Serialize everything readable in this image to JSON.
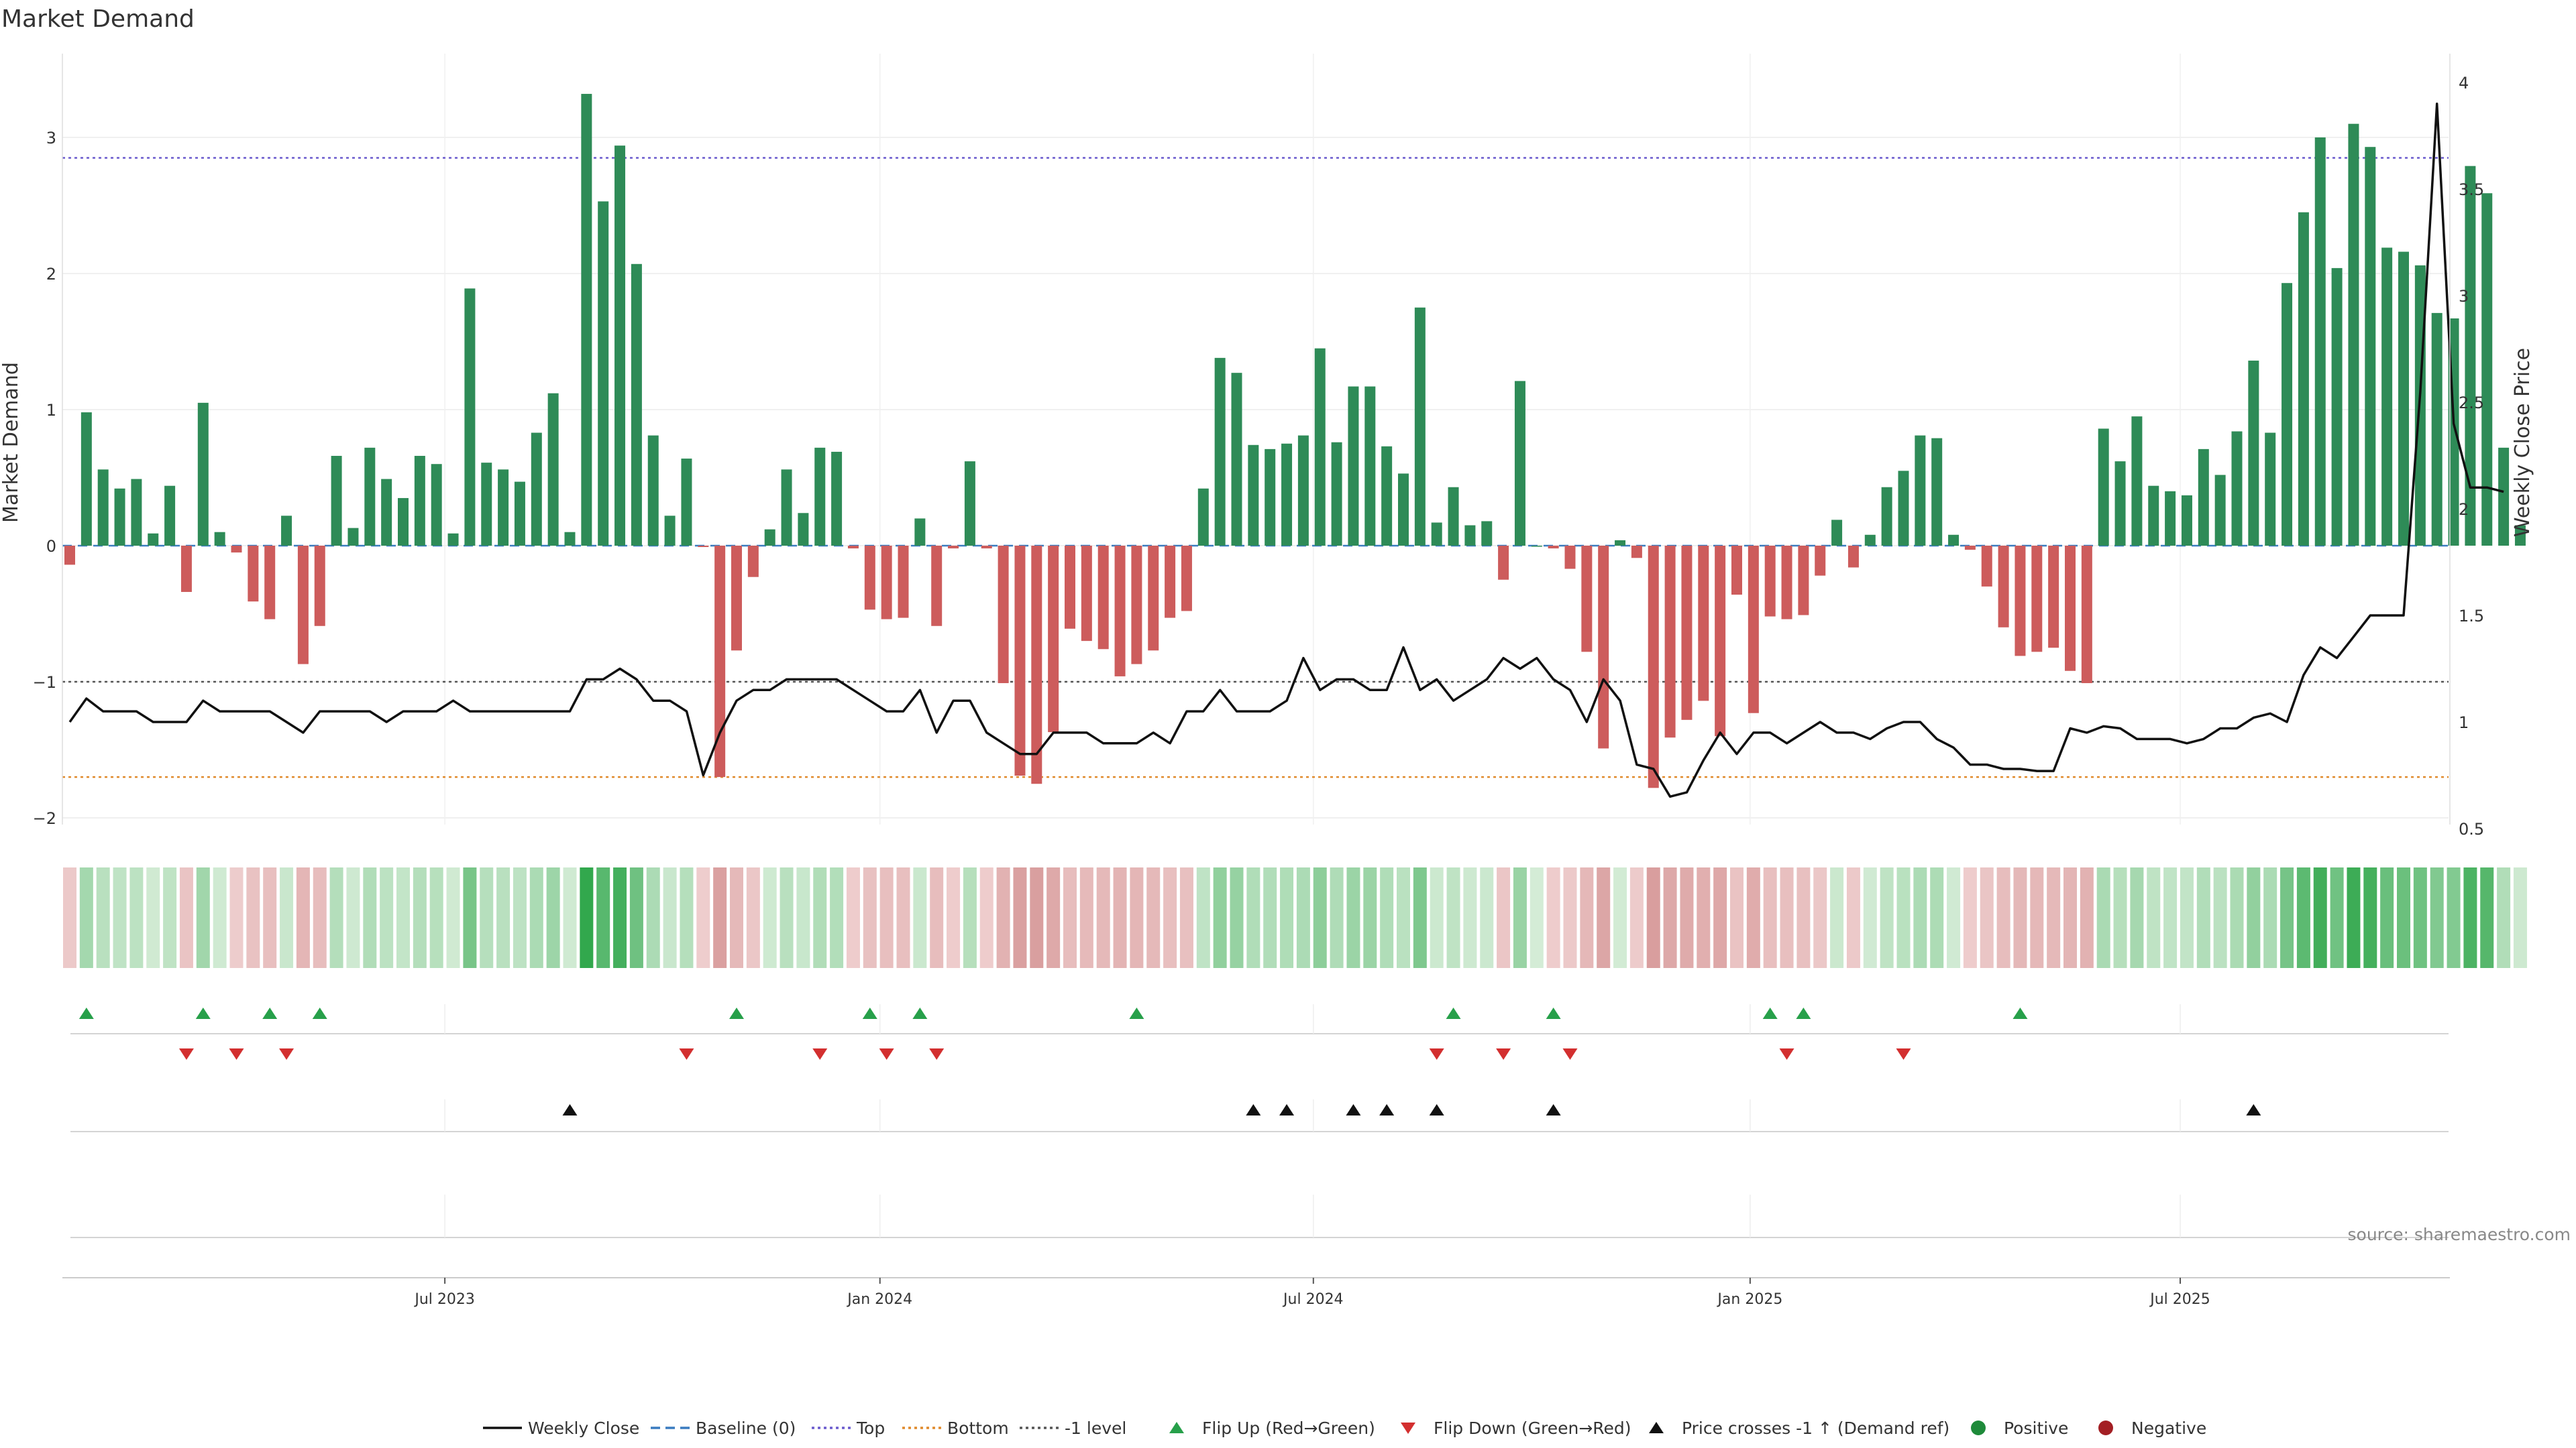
{
  "chart_data": {
    "type": "bar",
    "title": "Market Demand",
    "ylabel": "Market Demand",
    "y2label": "Weekly Close Price",
    "ylim": [
      -2.1,
      3.5
    ],
    "y2lim": [
      0.45,
      4.1
    ],
    "yticks": [
      -2,
      -1,
      0,
      1,
      2,
      3
    ],
    "yticklabels": [
      "−2",
      "−1",
      "0",
      "1",
      "2",
      "3"
    ],
    "y2ticks": [
      0.5,
      1,
      1.5,
      2,
      2.5,
      3,
      3.5,
      4
    ],
    "y2ticklabels": [
      "0.5",
      "1",
      "1.5",
      "2",
      "2.5",
      "3",
      "3.5",
      "4"
    ],
    "xticklabels": [
      "Jul 2023",
      "Jan 2024",
      "Jul 2024",
      "Jan 2025",
      "Jul 2025"
    ],
    "xtick_index": [
      22.5,
      48.6,
      74.6,
      100.8,
      126.6
    ],
    "reference_lines": {
      "top": 2.85,
      "bottom": -1.7,
      "minus_one": -1.0,
      "baseline": 0
    },
    "demand": [
      -0.14,
      0.98,
      0.56,
      0.42,
      0.49,
      0.09,
      0.44,
      -0.34,
      1.05,
      0.1,
      -0.05,
      -0.41,
      -0.54,
      0.22,
      -0.87,
      -0.59,
      0.66,
      0.13,
      0.72,
      0.49,
      0.35,
      0.66,
      0.6,
      0.09,
      1.89,
      0.61,
      0.56,
      0.47,
      0.83,
      1.12,
      0.1,
      3.32,
      2.53,
      2.94,
      2.07,
      0.81,
      0.22,
      0.64,
      -0.01,
      -1.7,
      -0.77,
      -0.23,
      0.12,
      0.56,
      0.24,
      0.72,
      0.69,
      -0.02,
      -0.47,
      -0.54,
      -0.53,
      0.2,
      -0.59,
      -0.02,
      0.62,
      -0.02,
      -1.01,
      -1.69,
      -1.75,
      -1.37,
      -0.61,
      -0.7,
      -0.76,
      -0.96,
      -0.87,
      -0.77,
      -0.53,
      -0.48,
      0.42,
      1.38,
      1.27,
      0.74,
      0.71,
      0.75,
      0.81,
      1.45,
      0.76,
      1.17,
      1.17,
      0.73,
      0.53,
      1.75,
      0.17,
      0.43,
      0.15,
      0.18,
      -0.25,
      1.21,
      0.0,
      -0.02,
      -0.17,
      -0.78,
      -1.49,
      0.04,
      -0.09,
      -1.78,
      -1.41,
      -1.28,
      -1.14,
      -1.4,
      -0.36,
      -1.23,
      -0.52,
      -0.54,
      -0.51,
      -0.22,
      0.19,
      -0.16,
      0.08,
      0.43,
      0.55,
      0.81,
      0.79,
      0.08,
      -0.03,
      -0.3,
      -0.6,
      -0.81,
      -0.78,
      -0.75,
      -0.92,
      -1.01,
      0.86,
      0.62,
      0.95,
      0.44,
      0.4,
      0.37,
      0.71,
      0.52,
      0.84,
      1.36,
      0.83,
      1.93,
      2.45,
      3.0,
      2.04,
      3.1,
      2.93,
      2.19,
      2.16,
      2.06,
      1.71,
      1.67,
      2.79,
      2.59,
      0.72,
      0.15
    ],
    "series": [
      {
        "name": "Weekly Close",
        "values": [
          1.0,
          1.11,
          1.05,
          1.05,
          1.05,
          1.0,
          1.0,
          1.0,
          1.1,
          1.05,
          1.05,
          1.05,
          1.05,
          1.0,
          0.95,
          1.05,
          1.05,
          1.05,
          1.05,
          1.0,
          1.05,
          1.05,
          1.05,
          1.1,
          1.05,
          1.05,
          1.05,
          1.05,
          1.05,
          1.05,
          1.05,
          1.2,
          1.2,
          1.25,
          1.2,
          1.1,
          1.1,
          1.05,
          0.75,
          0.95,
          1.1,
          1.15,
          1.15,
          1.2,
          1.2,
          1.2,
          1.2,
          1.15,
          1.1,
          1.05,
          1.05,
          1.15,
          0.95,
          1.1,
          1.1,
          0.95,
          0.9,
          0.85,
          0.85,
          0.95,
          0.95,
          0.95,
          0.9,
          0.9,
          0.9,
          0.95,
          0.9,
          1.05,
          1.05,
          1.15,
          1.05,
          1.05,
          1.05,
          1.1,
          1.3,
          1.15,
          1.2,
          1.2,
          1.15,
          1.15,
          1.35,
          1.15,
          1.2,
          1.1,
          1.15,
          1.2,
          1.3,
          1.25,
          1.3,
          1.2,
          1.15,
          1.0,
          1.2,
          1.1,
          0.8,
          0.78,
          0.65,
          0.67,
          0.82,
          0.95,
          0.85,
          0.95,
          0.95,
          0.9,
          0.95,
          1.0,
          0.95,
          0.95,
          0.92,
          0.97,
          1.0,
          1.0,
          0.92,
          0.88,
          0.8,
          0.8,
          0.78,
          0.78,
          0.77,
          0.77,
          0.97,
          0.95,
          0.98,
          0.97,
          0.92,
          0.92,
          0.92,
          0.9,
          0.92,
          0.97,
          0.97,
          1.02,
          1.04,
          1.0,
          1.22,
          1.35,
          1.3,
          1.4,
          1.5,
          1.5,
          1.5,
          2.55,
          3.9,
          2.4,
          2.1,
          2.1,
          2.08
        ]
      }
    ],
    "flip_up_index": [
      1,
      8,
      12,
      15,
      40,
      48,
      51,
      64,
      83,
      89,
      102,
      104,
      117
    ],
    "flip_down_index": [
      7,
      10,
      13,
      37,
      45,
      49,
      52,
      82,
      86,
      90,
      103,
      110
    ],
    "price_cross_index": [
      30,
      71,
      73,
      77,
      79,
      82,
      89,
      131
    ],
    "source": "source: sharemaestro.com",
    "legend": [
      {
        "label": "Weekly Close",
        "kind": "line-solid",
        "color": "#111111"
      },
      {
        "label": "Baseline (0)",
        "kind": "line-dashed",
        "color": "#3a7cc0"
      },
      {
        "label": "Top",
        "kind": "line-dotted",
        "color": "#6a5acd"
      },
      {
        "label": "Bottom",
        "kind": "line-dotted",
        "color": "#e08a2c"
      },
      {
        "label": "-1 level",
        "kind": "line-dotted",
        "color": "#555555"
      },
      {
        "label": "Flip Up (Red→Green)",
        "kind": "tri-up",
        "color": "#27a04a"
      },
      {
        "label": "Flip Down (Green→Red)",
        "kind": "tri-down",
        "color": "#d32f2f"
      },
      {
        "label": "Price crosses -1 ↑ (Demand ref)",
        "kind": "tri-up",
        "color": "#111111"
      },
      {
        "label": "Positive",
        "kind": "dot",
        "color": "#1e8a3a"
      },
      {
        "label": "Negative",
        "kind": "dot",
        "color": "#a31f24"
      }
    ],
    "colors": {
      "positive": "#2e8b57",
      "negative": "#cd5c5c",
      "price": "#111111"
    }
  }
}
